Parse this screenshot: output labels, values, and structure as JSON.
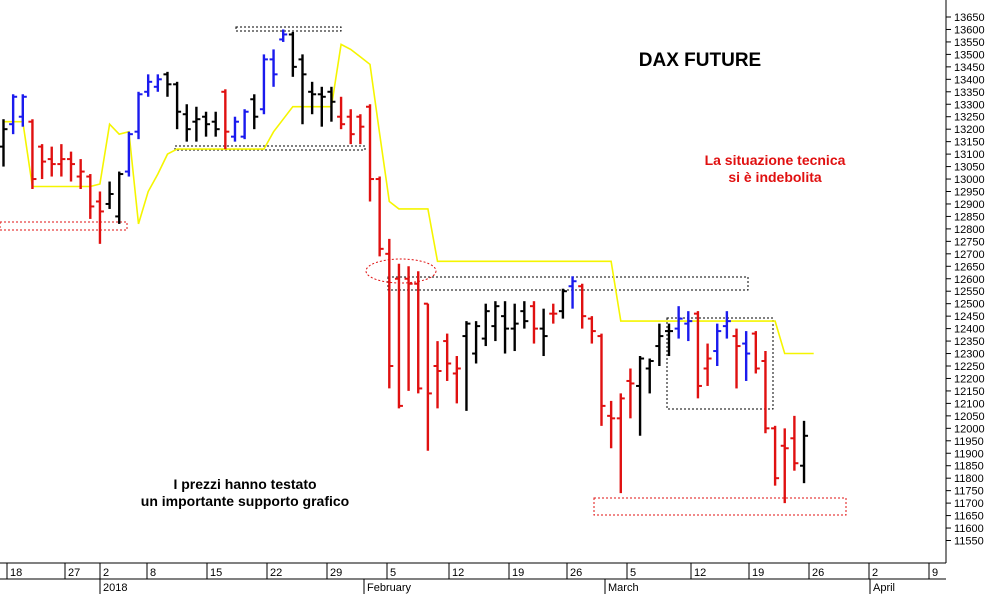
{
  "chart_data": {
    "type": "ohlc",
    "title": "DAX FUTURE",
    "annotations": [
      "La situazione tecnica\nsi è indebolita",
      "I prezzi hanno testato\nun importante supporto grafico"
    ],
    "y_ticks": [
      11550,
      11600,
      11650,
      11700,
      11750,
      11800,
      11850,
      11900,
      11950,
      12000,
      12050,
      12100,
      12150,
      12200,
      12250,
      12300,
      12350,
      12400,
      12450,
      12500,
      12550,
      12600,
      12650,
      12700,
      12750,
      12800,
      12850,
      12900,
      12950,
      13000,
      13050,
      13100,
      13150,
      13200,
      13250,
      13300,
      13350,
      13400,
      13450,
      13500,
      13550,
      13600,
      13650
    ],
    "ylim": [
      11525,
      13700
    ],
    "x_day_labels": [
      "18",
      "27",
      "2",
      "8",
      "15",
      "22",
      "29",
      "5",
      "12",
      "19",
      "26",
      "5",
      "12",
      "19",
      "26",
      "2",
      "9"
    ],
    "x_month_labels": [
      "2018",
      "February",
      "March",
      "April"
    ],
    "bar_colors": {
      "up": "#000000",
      "down": "#e01010",
      "blue": "#1a1aee"
    },
    "line_color": "#f5f500",
    "bars": [
      {
        "c": "black",
        "o": 13130,
        "h": 13240,
        "l": 13050,
        "cl": 13200
      },
      {
        "c": "blue",
        "o": 13220,
        "h": 13340,
        "l": 13180,
        "cl": 13330
      },
      {
        "c": "blue",
        "o": 13250,
        "h": 13340,
        "l": 13210,
        "cl": 13330
      },
      {
        "c": "red",
        "o": 13230,
        "h": 13240,
        "l": 12960,
        "cl": 13000
      },
      {
        "c": "red",
        "o": 13130,
        "h": 13140,
        "l": 13000,
        "cl": 13070
      },
      {
        "c": "red",
        "o": 13080,
        "h": 13130,
        "l": 13010,
        "cl": 13060
      },
      {
        "c": "red",
        "o": 13060,
        "h": 13140,
        "l": 13010,
        "cl": 13080
      },
      {
        "c": "red",
        "o": 13080,
        "h": 13110,
        "l": 12990,
        "cl": 13060
      },
      {
        "c": "red",
        "o": 13010,
        "h": 13080,
        "l": 12960,
        "cl": 13030
      },
      {
        "c": "red",
        "o": 13010,
        "h": 13020,
        "l": 12840,
        "cl": 12890
      },
      {
        "c": "red",
        "o": 12910,
        "h": 12950,
        "l": 12740,
        "cl": 12870
      },
      {
        "c": "black",
        "o": 12900,
        "h": 12990,
        "l": 12880,
        "cl": 12940
      },
      {
        "c": "black",
        "o": 12850,
        "h": 13030,
        "l": 12820,
        "cl": 13020
      },
      {
        "c": "blue",
        "o": 13030,
        "h": 13190,
        "l": 13010,
        "cl": 13180
      },
      {
        "c": "blue",
        "o": 13190,
        "h": 13350,
        "l": 13160,
        "cl": 13340
      },
      {
        "c": "blue",
        "o": 13350,
        "h": 13420,
        "l": 13330,
        "cl": 13390
      },
      {
        "c": "blue",
        "o": 13370,
        "h": 13420,
        "l": 13350,
        "cl": 13400
      },
      {
        "c": "black",
        "o": 13420,
        "h": 13430,
        "l": 13330,
        "cl": 13380
      },
      {
        "c": "black",
        "o": 13380,
        "h": 13390,
        "l": 13200,
        "cl": 13270
      },
      {
        "c": "black",
        "o": 13260,
        "h": 13300,
        "l": 13150,
        "cl": 13200
      },
      {
        "c": "black",
        "o": 13230,
        "h": 13290,
        "l": 13150,
        "cl": 13240
      },
      {
        "c": "black",
        "o": 13250,
        "h": 13270,
        "l": 13170,
        "cl": 13220
      },
      {
        "c": "black",
        "o": 13230,
        "h": 13270,
        "l": 13170,
        "cl": 13200
      },
      {
        "c": "red",
        "o": 13350,
        "h": 13360,
        "l": 13120,
        "cl": 13190
      },
      {
        "c": "blue",
        "o": 13170,
        "h": 13250,
        "l": 13150,
        "cl": 13230
      },
      {
        "c": "blue",
        "o": 13170,
        "h": 13280,
        "l": 13160,
        "cl": 13270
      },
      {
        "c": "black",
        "o": 13320,
        "h": 13340,
        "l": 13200,
        "cl": 13250
      },
      {
        "c": "blue",
        "o": 13280,
        "h": 13500,
        "l": 13260,
        "cl": 13480
      },
      {
        "c": "blue",
        "o": 13480,
        "h": 13520,
        "l": 13370,
        "cl": 13420
      },
      {
        "c": "blue",
        "o": 13560,
        "h": 13600,
        "l": 13550,
        "cl": 13580
      },
      {
        "c": "black",
        "o": 13580,
        "h": 13590,
        "l": 13410,
        "cl": 13450
      },
      {
        "c": "black",
        "o": 13480,
        "h": 13500,
        "l": 13220,
        "cl": 13420
      },
      {
        "c": "black",
        "o": 13350,
        "h": 13390,
        "l": 13260,
        "cl": 13340
      },
      {
        "c": "black",
        "o": 13340,
        "h": 13370,
        "l": 13210,
        "cl": 13330
      },
      {
        "c": "black",
        "o": 13350,
        "h": 13370,
        "l": 13230,
        "cl": 13310
      },
      {
        "c": "red",
        "o": 13250,
        "h": 13330,
        "l": 13200,
        "cl": 13220
      },
      {
        "c": "red",
        "o": 13250,
        "h": 13280,
        "l": 13140,
        "cl": 13180
      },
      {
        "c": "red",
        "o": 13250,
        "h": 13260,
        "l": 13140,
        "cl": 13210
      },
      {
        "c": "red",
        "o": 13290,
        "h": 13300,
        "l": 12910,
        "cl": 13000
      },
      {
        "c": "red",
        "o": 13000,
        "h": 13010,
        "l": 12690,
        "cl": 12720
      },
      {
        "c": "red",
        "o": 12700,
        "h": 12760,
        "l": 12160,
        "cl": 12250
      },
      {
        "c": "red",
        "o": 12600,
        "h": 12660,
        "l": 12080,
        "cl": 12090
      },
      {
        "c": "red",
        "o": 12600,
        "h": 12650,
        "l": 12150,
        "cl": 12580
      },
      {
        "c": "red",
        "o": 12580,
        "h": 12630,
        "l": 12140,
        "cl": 12160
      },
      {
        "c": "red",
        "o": 12500,
        "h": 12500,
        "l": 11910,
        "cl": 12140
      },
      {
        "c": "red",
        "o": 12250,
        "h": 12350,
        "l": 12080,
        "cl": 12230
      },
      {
        "c": "red",
        "o": 12350,
        "h": 12380,
        "l": 12190,
        "cl": 12260
      },
      {
        "c": "red",
        "o": 12220,
        "h": 12290,
        "l": 12100,
        "cl": 12240
      },
      {
        "c": "black",
        "o": 12370,
        "h": 12430,
        "l": 12070,
        "cl": 12420
      },
      {
        "c": "black",
        "o": 12300,
        "h": 12430,
        "l": 12260,
        "cl": 12410
      },
      {
        "c": "black",
        "o": 12360,
        "h": 12500,
        "l": 12330,
        "cl": 12470
      },
      {
        "c": "black",
        "o": 12410,
        "h": 12510,
        "l": 12350,
        "cl": 12490
      },
      {
        "c": "black",
        "o": 12450,
        "h": 12510,
        "l": 12300,
        "cl": 12400
      },
      {
        "c": "black",
        "o": 12400,
        "h": 12500,
        "l": 12310,
        "cl": 12420
      },
      {
        "c": "black",
        "o": 12470,
        "h": 12510,
        "l": 12400,
        "cl": 12430
      },
      {
        "c": "red",
        "o": 12490,
        "h": 12510,
        "l": 12340,
        "cl": 12400
      },
      {
        "c": "black",
        "o": 12400,
        "h": 12480,
        "l": 12290,
        "cl": 12370
      },
      {
        "c": "red",
        "o": 12460,
        "h": 12500,
        "l": 12420,
        "cl": 12460
      },
      {
        "c": "black",
        "o": 12470,
        "h": 12560,
        "l": 12440,
        "cl": 12550
      },
      {
        "c": "blue",
        "o": 12570,
        "h": 12610,
        "l": 12480,
        "cl": 12590
      },
      {
        "c": "red",
        "o": 12570,
        "h": 12580,
        "l": 12400,
        "cl": 12450
      },
      {
        "c": "red",
        "o": 12440,
        "h": 12450,
        "l": 12340,
        "cl": 12390
      },
      {
        "c": "red",
        "o": 12370,
        "h": 12380,
        "l": 12010,
        "cl": 12090
      },
      {
        "c": "red",
        "o": 12050,
        "h": 12110,
        "l": 11920,
        "cl": 12040
      },
      {
        "c": "red",
        "o": 12040,
        "h": 12140,
        "l": 11740,
        "cl": 12120
      },
      {
        "c": "red",
        "o": 12190,
        "h": 12240,
        "l": 12040,
        "cl": 12180
      },
      {
        "c": "black",
        "o": 12170,
        "h": 12290,
        "l": 11970,
        "cl": 12280
      },
      {
        "c": "black",
        "o": 12240,
        "h": 12280,
        "l": 12140,
        "cl": 12270
      },
      {
        "c": "black",
        "o": 12330,
        "h": 12420,
        "l": 12250,
        "cl": 12370
      },
      {
        "c": "black",
        "o": 12390,
        "h": 12420,
        "l": 12290,
        "cl": 12390
      },
      {
        "c": "blue",
        "o": 12400,
        "h": 12490,
        "l": 12360,
        "cl": 12440
      },
      {
        "c": "blue",
        "o": 12420,
        "h": 12470,
        "l": 12350,
        "cl": 12430
      },
      {
        "c": "red",
        "o": 12460,
        "h": 12470,
        "l": 12120,
        "cl": 12170
      },
      {
        "c": "red",
        "o": 12240,
        "h": 12340,
        "l": 12170,
        "cl": 12280
      },
      {
        "c": "blue",
        "o": 12310,
        "h": 12420,
        "l": 12250,
        "cl": 12390
      },
      {
        "c": "blue",
        "o": 12410,
        "h": 12470,
        "l": 12360,
        "cl": 12430
      },
      {
        "c": "red",
        "o": 12370,
        "h": 12400,
        "l": 12160,
        "cl": 12330
      },
      {
        "c": "blue",
        "o": 12340,
        "h": 12390,
        "l": 12190,
        "cl": 12300
      },
      {
        "c": "red",
        "o": 12380,
        "h": 12390,
        "l": 12220,
        "cl": 12240
      },
      {
        "c": "red",
        "o": 12270,
        "h": 12310,
        "l": 11980,
        "cl": 12000
      },
      {
        "c": "red",
        "o": 12000,
        "h": 12010,
        "l": 11770,
        "cl": 11800
      },
      {
        "c": "red",
        "o": 11930,
        "h": 12000,
        "l": 11700,
        "cl": 11920
      },
      {
        "c": "red",
        "o": 11960,
        "h": 12050,
        "l": 11830,
        "cl": 11860
      },
      {
        "c": "black",
        "o": 11850,
        "h": 12030,
        "l": 11780,
        "cl": 11970
      }
    ],
    "moving_line": [
      13230,
      13230,
      13230,
      12970,
      12970,
      12970,
      12970,
      12970,
      12970,
      12970,
      12980,
      13220,
      13180,
      13190,
      12820,
      12950,
      13020,
      13100,
      13120,
      13120,
      13120,
      13120,
      13120,
      13120,
      13120,
      13120,
      13120,
      13120,
      13190,
      13240,
      13290,
      13290,
      13290,
      13290,
      13290,
      13540,
      13520,
      13490,
      13460,
      13180,
      12910,
      12880,
      12880,
      12880,
      12880,
      12670,
      12670,
      12670,
      12670,
      12670,
      12670,
      12670,
      12670,
      12670,
      12670,
      12670,
      12670,
      12670,
      12670,
      12670,
      12670,
      12670,
      12670,
      12670,
      12430,
      12430,
      12430,
      12430,
      12430,
      12430,
      12430,
      12430,
      12430,
      12430,
      12430,
      12430,
      12430,
      12430,
      12430,
      12430,
      12430,
      12300,
      12300,
      12300,
      12300
    ]
  }
}
